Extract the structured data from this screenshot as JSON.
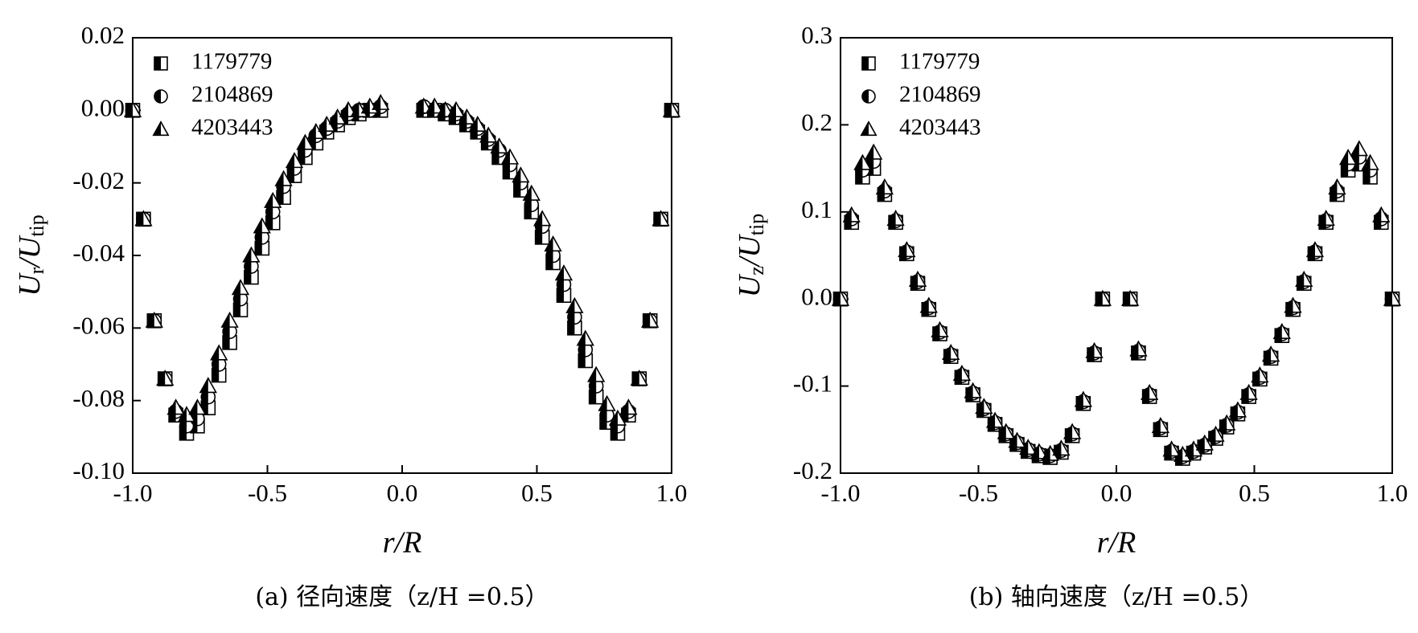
{
  "chart_data": [
    {
      "type": "scatter",
      "caption": "(a) 径向速度（z/H =0.5）",
      "xlabel": "r/R",
      "ylabel": [
        {
          "text": "U"
        },
        {
          "text": "r",
          "sub": true
        },
        {
          "text": "/U"
        },
        {
          "text": "tip",
          "sub": true
        }
      ],
      "xlim": [
        -1,
        1
      ],
      "xticks": [
        {
          "value": -1,
          "label": "-1.0"
        },
        -0.5,
        {
          "value": 0,
          "label": "0.0"
        },
        0.5,
        {
          "value": 1,
          "label": "1.0"
        }
      ],
      "ylim": [
        -0.1,
        0.02
      ],
      "yticks": [
        0.02,
        {
          "value": 0,
          "label": "0.00"
        },
        -0.02,
        -0.04,
        -0.06,
        -0.08,
        {
          "value": -0.1,
          "label": "-0.10"
        }
      ],
      "legend": "upper left",
      "series": [
        {
          "name": "1179779",
          "marker": "square",
          "color": "#000000",
          "x": [
            -1,
            -0.96,
            -0.92,
            -0.88,
            -0.84,
            -0.8,
            -0.76,
            -0.72,
            -0.68,
            -0.64,
            -0.6,
            -0.56,
            -0.52,
            -0.48,
            -0.44,
            -0.4,
            -0.36,
            -0.32,
            -0.28,
            -0.24,
            -0.2,
            -0.16,
            -0.12,
            -0.08,
            0.08,
            0.12,
            0.16,
            0.2,
            0.24,
            0.28,
            0.32,
            0.36,
            0.4,
            0.44,
            0.48,
            0.52,
            0.56,
            0.6,
            0.64,
            0.68,
            0.72,
            0.76,
            0.8,
            0.84,
            0.88,
            0.92,
            0.96,
            1
          ],
          "values": [
            0,
            -0.03,
            -0.058,
            -0.074,
            -0.084,
            -0.089,
            -0.087,
            -0.082,
            -0.073,
            -0.064,
            -0.055,
            -0.046,
            -0.038,
            -0.031,
            -0.024,
            -0.018,
            -0.013,
            -0.009,
            -0.006,
            -0.004,
            -0.002,
            -0.001,
            0,
            0,
            0,
            0,
            -0.001,
            -0.002,
            -0.004,
            -0.006,
            -0.009,
            -0.013,
            -0.017,
            -0.022,
            -0.028,
            -0.035,
            -0.042,
            -0.051,
            -0.06,
            -0.069,
            -0.079,
            -0.086,
            -0.089,
            -0.084,
            -0.074,
            -0.058,
            -0.03,
            0
          ]
        },
        {
          "name": "2104869",
          "marker": "circle",
          "color": "#000000",
          "x": [
            -1,
            -0.96,
            -0.92,
            -0.88,
            -0.84,
            -0.8,
            -0.76,
            -0.72,
            -0.68,
            -0.64,
            -0.6,
            -0.56,
            -0.52,
            -0.48,
            -0.44,
            -0.4,
            -0.36,
            -0.32,
            -0.28,
            -0.24,
            -0.2,
            -0.16,
            -0.12,
            -0.08,
            0.08,
            0.12,
            0.16,
            0.2,
            0.24,
            0.28,
            0.32,
            0.36,
            0.4,
            0.44,
            0.48,
            0.52,
            0.56,
            0.6,
            0.64,
            0.68,
            0.72,
            0.76,
            0.8,
            0.84,
            0.88,
            0.92,
            0.96,
            1
          ],
          "values": [
            0,
            -0.03,
            -0.058,
            -0.074,
            -0.083,
            -0.087,
            -0.085,
            -0.079,
            -0.07,
            -0.061,
            -0.052,
            -0.043,
            -0.035,
            -0.028,
            -0.021,
            -0.016,
            -0.011,
            -0.007,
            -0.005,
            -0.003,
            -0.001,
            0,
            0,
            0.001,
            0.001,
            0,
            0,
            -0.001,
            -0.003,
            -0.005,
            -0.008,
            -0.011,
            -0.015,
            -0.02,
            -0.026,
            -0.032,
            -0.04,
            -0.048,
            -0.057,
            -0.066,
            -0.076,
            -0.084,
            -0.087,
            -0.083,
            -0.074,
            -0.058,
            -0.03,
            0
          ]
        },
        {
          "name": "4203443",
          "marker": "triangle",
          "color": "#000000",
          "x": [
            -1,
            -0.96,
            -0.92,
            -0.88,
            -0.84,
            -0.8,
            -0.76,
            -0.72,
            -0.68,
            -0.64,
            -0.6,
            -0.56,
            -0.52,
            -0.48,
            -0.44,
            -0.4,
            -0.36,
            -0.32,
            -0.28,
            -0.24,
            -0.2,
            -0.16,
            -0.12,
            -0.08,
            0.08,
            0.12,
            0.16,
            0.2,
            0.24,
            0.28,
            0.32,
            0.36,
            0.4,
            0.44,
            0.48,
            0.52,
            0.56,
            0.6,
            0.64,
            0.68,
            0.72,
            0.76,
            0.8,
            0.84,
            0.88,
            0.92,
            0.96,
            1
          ],
          "values": [
            0,
            -0.03,
            -0.058,
            -0.074,
            -0.082,
            -0.084,
            -0.082,
            -0.076,
            -0.067,
            -0.058,
            -0.049,
            -0.04,
            -0.032,
            -0.025,
            -0.019,
            -0.014,
            -0.009,
            -0.006,
            -0.004,
            -0.002,
            0,
            0,
            0.001,
            0.002,
            0.001,
            0.001,
            0,
            0,
            -0.002,
            -0.004,
            -0.007,
            -0.01,
            -0.013,
            -0.018,
            -0.023,
            -0.03,
            -0.037,
            -0.045,
            -0.054,
            -0.063,
            -0.073,
            -0.081,
            -0.085,
            -0.082,
            -0.074,
            -0.058,
            -0.03,
            0
          ]
        }
      ]
    },
    {
      "type": "scatter",
      "caption": "(b) 轴向速度（z/H =0.5）",
      "xlabel": "r/R",
      "ylabel": [
        {
          "text": "U"
        },
        {
          "text": "z",
          "sub": true
        },
        {
          "text": "/U"
        },
        {
          "text": "tip",
          "sub": true
        }
      ],
      "xlim": [
        -1,
        1
      ],
      "xticks": [
        {
          "value": -1,
          "label": "-1.0"
        },
        -0.5,
        {
          "value": 0,
          "label": "0.0"
        },
        0.5,
        {
          "value": 1,
          "label": "1.0"
        }
      ],
      "ylim": [
        -0.2,
        0.3
      ],
      "yticks": [
        0.3,
        0.2,
        0.1,
        {
          "value": 0,
          "label": "0.0"
        },
        -0.1,
        -0.2
      ],
      "legend": "upper left",
      "series": [
        {
          "name": "1179779",
          "marker": "square",
          "color": "#000000",
          "x": [
            -1,
            -0.96,
            -0.92,
            -0.88,
            -0.84,
            -0.8,
            -0.76,
            -0.72,
            -0.68,
            -0.64,
            -0.6,
            -0.56,
            -0.52,
            -0.48,
            -0.44,
            -0.4,
            -0.36,
            -0.32,
            -0.28,
            -0.24,
            -0.2,
            -0.16,
            -0.12,
            -0.08,
            -0.05,
            0.05,
            0.08,
            0.12,
            0.16,
            0.2,
            0.24,
            0.28,
            0.32,
            0.36,
            0.4,
            0.44,
            0.48,
            0.52,
            0.56,
            0.6,
            0.64,
            0.68,
            0.72,
            0.76,
            0.8,
            0.84,
            0.88,
            0.92,
            0.96,
            1
          ],
          "values": [
            0,
            0.088,
            0.14,
            0.15,
            0.12,
            0.088,
            0.052,
            0.018,
            -0.012,
            -0.04,
            -0.066,
            -0.09,
            -0.11,
            -0.128,
            -0.144,
            -0.157,
            -0.167,
            -0.175,
            -0.18,
            -0.182,
            -0.176,
            -0.157,
            -0.12,
            -0.064,
            0,
            0,
            -0.062,
            -0.112,
            -0.15,
            -0.177,
            -0.183,
            -0.177,
            -0.17,
            -0.16,
            -0.147,
            -0.132,
            -0.112,
            -0.092,
            -0.068,
            -0.042,
            -0.012,
            0.018,
            0.052,
            0.088,
            0.12,
            0.148,
            0.155,
            0.14,
            0.088,
            0
          ]
        },
        {
          "name": "2104869",
          "marker": "circle",
          "color": "#000000",
          "x": [
            -1,
            -0.96,
            -0.92,
            -0.88,
            -0.84,
            -0.8,
            -0.76,
            -0.72,
            -0.68,
            -0.64,
            -0.6,
            -0.56,
            -0.52,
            -0.48,
            -0.44,
            -0.4,
            -0.36,
            -0.32,
            -0.28,
            -0.24,
            -0.2,
            -0.16,
            -0.12,
            -0.08,
            -0.05,
            0.05,
            0.08,
            0.12,
            0.16,
            0.2,
            0.24,
            0.28,
            0.32,
            0.36,
            0.4,
            0.44,
            0.48,
            0.52,
            0.56,
            0.6,
            0.64,
            0.68,
            0.72,
            0.76,
            0.8,
            0.84,
            0.88,
            0.92,
            0.96,
            1
          ],
          "values": [
            0,
            0.092,
            0.148,
            0.158,
            0.124,
            0.09,
            0.054,
            0.02,
            -0.01,
            -0.038,
            -0.064,
            -0.088,
            -0.108,
            -0.126,
            -0.142,
            -0.155,
            -0.165,
            -0.173,
            -0.178,
            -0.18,
            -0.174,
            -0.155,
            -0.118,
            -0.062,
            0,
            0,
            -0.06,
            -0.11,
            -0.148,
            -0.175,
            -0.181,
            -0.175,
            -0.168,
            -0.158,
            -0.145,
            -0.13,
            -0.11,
            -0.09,
            -0.066,
            -0.04,
            -0.01,
            0.02,
            0.054,
            0.09,
            0.124,
            0.155,
            0.163,
            0.148,
            0.092,
            0
          ]
        },
        {
          "name": "4203443",
          "marker": "triangle",
          "color": "#000000",
          "x": [
            -1,
            -0.96,
            -0.92,
            -0.88,
            -0.84,
            -0.8,
            -0.76,
            -0.72,
            -0.68,
            -0.64,
            -0.6,
            -0.56,
            -0.52,
            -0.48,
            -0.44,
            -0.4,
            -0.36,
            -0.32,
            -0.28,
            -0.24,
            -0.2,
            -0.16,
            -0.12,
            -0.08,
            -0.05,
            0.05,
            0.08,
            0.12,
            0.16,
            0.2,
            0.24,
            0.28,
            0.32,
            0.36,
            0.4,
            0.44,
            0.48,
            0.52,
            0.56,
            0.6,
            0.64,
            0.68,
            0.72,
            0.76,
            0.8,
            0.84,
            0.88,
            0.92,
            0.96,
            1
          ],
          "values": [
            0,
            0.096,
            0.156,
            0.168,
            0.128,
            0.092,
            0.056,
            0.022,
            -0.008,
            -0.036,
            -0.062,
            -0.086,
            -0.106,
            -0.124,
            -0.14,
            -0.153,
            -0.163,
            -0.171,
            -0.176,
            -0.178,
            -0.172,
            -0.153,
            -0.116,
            -0.06,
            0,
            0,
            -0.058,
            -0.108,
            -0.146,
            -0.173,
            -0.179,
            -0.173,
            -0.166,
            -0.156,
            -0.143,
            -0.128,
            -0.108,
            -0.088,
            -0.064,
            -0.038,
            -0.008,
            0.022,
            0.056,
            0.092,
            0.128,
            0.162,
            0.172,
            0.156,
            0.096,
            0
          ]
        }
      ]
    }
  ]
}
